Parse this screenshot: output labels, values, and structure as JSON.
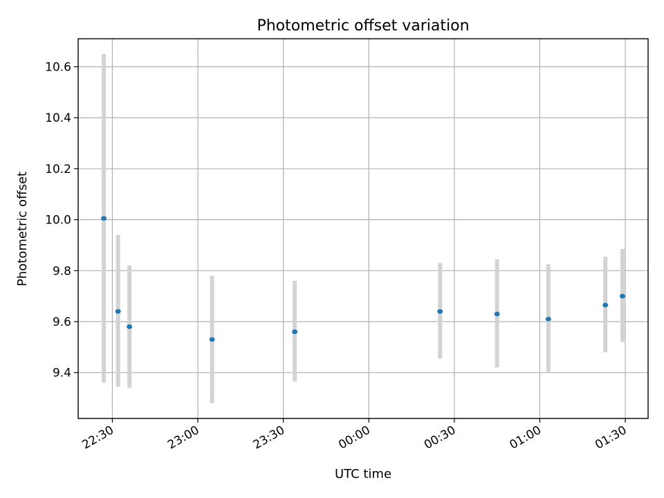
{
  "chart_data": {
    "type": "scatter",
    "title": "Photometric offset variation",
    "xlabel": "UTC time",
    "ylabel": "Photometric offset",
    "grid": true,
    "x_ticks": [
      "22:30",
      "23:00",
      "23:30",
      "00:00",
      "00:30",
      "01:00",
      "01:30"
    ],
    "y_ticks": [
      9.4,
      9.6,
      9.8,
      10.0,
      10.2,
      10.4,
      10.6
    ],
    "y_tick_labels": [
      "9.4",
      "9.6",
      "9.8",
      "10.0",
      "10.2",
      "10.4",
      "10.6"
    ],
    "xlim": [
      "22:18",
      "01:38"
    ],
    "ylim": [
      9.22,
      10.71
    ],
    "marker_color": "#1f77b4",
    "errorbar_color": "#d3d3d3",
    "series": [
      {
        "points": [
          {
            "x": "22:27",
            "y": 10.005,
            "ylow": 9.36,
            "yhigh": 10.65
          },
          {
            "x": "22:32",
            "y": 9.64,
            "ylow": 9.345,
            "yhigh": 9.94
          },
          {
            "x": "22:36",
            "y": 9.58,
            "ylow": 9.34,
            "yhigh": 9.82
          },
          {
            "x": "23:05",
            "y": 9.53,
            "ylow": 9.28,
            "yhigh": 9.78
          },
          {
            "x": "23:34",
            "y": 9.56,
            "ylow": 9.365,
            "yhigh": 9.76
          },
          {
            "x": "00:25",
            "y": 9.64,
            "ylow": 9.455,
            "yhigh": 9.83
          },
          {
            "x": "00:45",
            "y": 9.63,
            "ylow": 9.42,
            "yhigh": 9.845
          },
          {
            "x": "01:03",
            "y": 9.61,
            "ylow": 9.4,
            "yhigh": 9.825
          },
          {
            "x": "01:23",
            "y": 9.665,
            "ylow": 9.48,
            "yhigh": 9.855
          },
          {
            "x": "01:29",
            "y": 9.7,
            "ylow": 9.52,
            "yhigh": 9.885
          }
        ]
      }
    ]
  }
}
